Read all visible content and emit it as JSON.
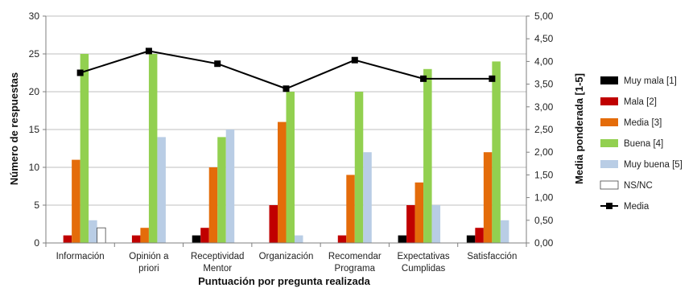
{
  "chart_data": {
    "type": "bar",
    "xlabel": "Puntuación por pregunta realizada",
    "ylabel": "Número de respuestas",
    "y2label": "Media ponderada [1-5]",
    "ylim": [
      0,
      30
    ],
    "y2lim": [
      0,
      5
    ],
    "yticks": [
      "0",
      "5",
      "10",
      "15",
      "20",
      "25",
      "30"
    ],
    "y2ticks": [
      "0,00",
      "0,50",
      "1,00",
      "1,50",
      "2,00",
      "2,50",
      "3,00",
      "3,50",
      "4,00",
      "4,50",
      "5,00"
    ],
    "categories": [
      [
        "Información"
      ],
      [
        "Opinión a",
        "priori"
      ],
      [
        "Receptividad",
        "Mentor"
      ],
      [
        "Organización"
      ],
      [
        "Recomendar",
        "Programa"
      ],
      [
        "Expectativas",
        "Cumplidas"
      ],
      [
        "Satisfacción"
      ]
    ],
    "series": [
      {
        "name": "Muy mala [1]",
        "color": "#000000",
        "values": [
          0,
          0,
          1,
          0,
          0,
          1,
          1
        ]
      },
      {
        "name": "Mala [2]",
        "color": "#c00000",
        "values": [
          1,
          1,
          2,
          5,
          1,
          5,
          2
        ]
      },
      {
        "name": "Media [3]",
        "color": "#e46c0a",
        "values": [
          11,
          2,
          10,
          16,
          9,
          8,
          12
        ]
      },
      {
        "name": "Buena [4]",
        "color": "#92d050",
        "values": [
          25,
          25,
          14,
          20,
          20,
          23,
          24
        ]
      },
      {
        "name": "Muy buena [5]",
        "color": "#b9cde5",
        "values": [
          3,
          14,
          15,
          1,
          12,
          5,
          3
        ]
      },
      {
        "name": "NS/NC",
        "color": "#ffffff",
        "values": [
          2,
          0,
          0,
          0,
          0,
          0,
          0
        ]
      }
    ],
    "line_series": {
      "name": "Media",
      "color": "#000000",
      "axis": "right",
      "values": [
        3.75,
        4.23,
        3.95,
        3.4,
        4.03,
        3.62,
        3.62
      ]
    },
    "grid": true,
    "legend_position": "right"
  }
}
